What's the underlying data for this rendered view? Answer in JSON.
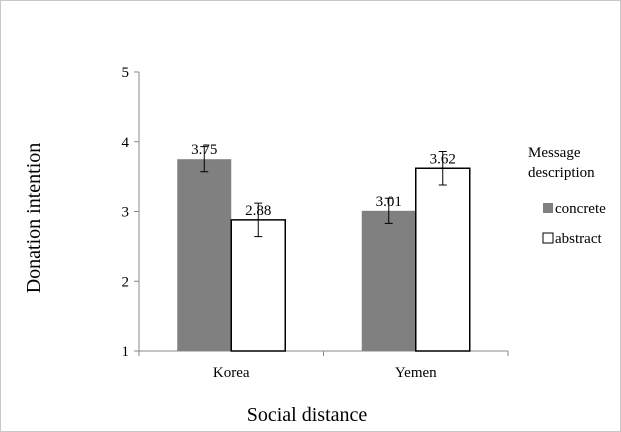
{
  "chart_data": {
    "type": "bar",
    "categories": [
      "Korea",
      "Yemen"
    ],
    "series": [
      {
        "name": "concrete",
        "values": [
          3.75,
          3.01
        ],
        "labels": [
          "3.75",
          "3.01"
        ],
        "error": [
          0.18,
          0.18
        ],
        "color": "#808080"
      },
      {
        "name": "abstract",
        "values": [
          2.88,
          3.62
        ],
        "labels": [
          "2.88",
          "3.62"
        ],
        "error": [
          0.24,
          0.24
        ],
        "color": "#ffffff"
      }
    ],
    "xlabel": "Social distance",
    "ylabel": "Donation intention",
    "ylim": [
      1,
      5
    ],
    "yticks": [
      "1",
      "2",
      "3",
      "4",
      "5"
    ],
    "grid": false,
    "legend": {
      "title_lines": [
        "Message",
        "description"
      ],
      "placement": "right"
    }
  }
}
